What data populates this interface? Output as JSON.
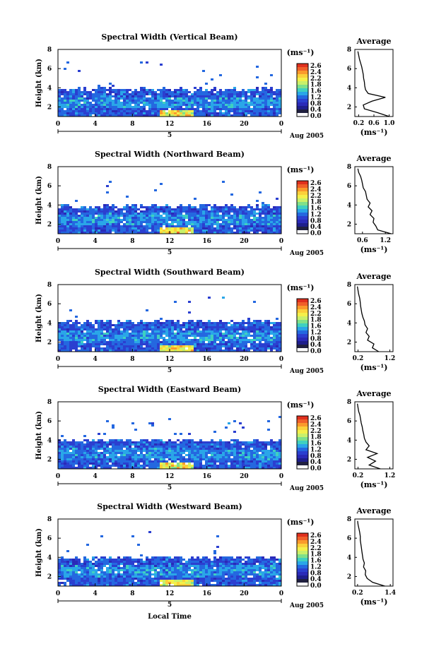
{
  "figure": {
    "date_label": "Aug 2005",
    "day_label": "5",
    "bottom_xlabel": "Local Time",
    "avg_title": "Average",
    "units_label": "(ms⁻¹)",
    "height_label": "Height (km)"
  },
  "colorbar": {
    "ticks": [
      "2.6",
      "2.4",
      "2.2",
      "1.8",
      "1.6",
      "1.2",
      "0.8",
      "0.4",
      "0.0"
    ],
    "colors": [
      "#e0301e",
      "#f0602a",
      "#fa9a2c",
      "#fbd03a",
      "#f4f04a",
      "#c9f06a",
      "#7fe08a",
      "#3fd0c0",
      "#2aa6e8",
      "#2468e0",
      "#2b3fd0",
      "#2a2ab8",
      "#1e1e8c",
      "#202040",
      "#ffffff"
    ]
  },
  "chart_data": [
    {
      "type": "heatmap",
      "title": "Spectral Width (Vertical Beam)",
      "xlabel": "",
      "ylabel": "Height (km)",
      "xlim": [
        0,
        24
      ],
      "ylim": [
        1,
        8
      ],
      "xticks": [
        "0",
        "4",
        "8",
        "12",
        "16",
        "20",
        "0"
      ],
      "yticks": [
        "2",
        "4",
        "6",
        "8"
      ],
      "top_km": 4.0,
      "profile": {
        "title": "Average",
        "xlabel": "(ms⁻¹)",
        "xticks": [
          "0.2",
          "0.6",
          "1.0"
        ],
        "xlim": [
          0.1,
          1.1
        ],
        "yticks": [
          "2",
          "4",
          "6",
          "8"
        ],
        "heights_km": [
          1.0,
          1.4,
          1.8,
          2.2,
          2.6,
          3.0,
          3.4,
          3.8,
          4.2,
          4.6,
          5.0,
          5.4,
          5.8,
          6.2,
          6.6,
          7.0,
          7.4,
          7.8
        ],
        "values": [
          1.0,
          0.7,
          0.35,
          0.32,
          0.55,
          0.9,
          0.45,
          0.38,
          0.36,
          0.35,
          0.33,
          0.32,
          0.3,
          0.28,
          0.25,
          0.22,
          0.2,
          0.18
        ]
      }
    },
    {
      "type": "heatmap",
      "title": "Spectral Width (Northward Beam)",
      "xlabel": "",
      "ylabel": "Height (km)",
      "xlim": [
        0,
        24
      ],
      "ylim": [
        1,
        8
      ],
      "xticks": [
        "0",
        "4",
        "8",
        "12",
        "16",
        "20",
        "0"
      ],
      "yticks": [
        "2",
        "4",
        "6",
        "8"
      ],
      "top_km": 4.0,
      "profile": {
        "title": "Average",
        "xlabel": "(ms⁻¹)",
        "xticks": [
          "0.6",
          "1.2"
        ],
        "xlim": [
          0.4,
          1.4
        ],
        "yticks": [
          "2",
          "4",
          "6",
          "8"
        ],
        "heights_km": [
          1.0,
          1.4,
          1.8,
          2.2,
          2.6,
          3.0,
          3.4,
          3.8,
          4.2,
          4.6,
          5.0,
          5.4,
          5.8,
          6.2,
          6.6,
          7.0,
          7.4,
          7.8
        ],
        "values": [
          1.35,
          1.0,
          0.95,
          0.88,
          0.9,
          0.8,
          0.85,
          0.75,
          0.8,
          0.72,
          0.7,
          0.68,
          0.62,
          0.6,
          0.58,
          0.55,
          0.5,
          0.48
        ]
      }
    },
    {
      "type": "heatmap",
      "title": "Spectral Width (Southward Beam)",
      "xlabel": "",
      "ylabel": "Height (km)",
      "xlim": [
        0,
        24
      ],
      "ylim": [
        1,
        8
      ],
      "xticks": [
        "0",
        "4",
        "8",
        "12",
        "16",
        "20",
        "0"
      ],
      "yticks": [
        "2",
        "4",
        "6",
        "8"
      ],
      "top_km": 4.3,
      "profile": {
        "title": "Average",
        "xlabel": "(ms⁻¹)",
        "xticks": [
          "0.2",
          "1.2"
        ],
        "xlim": [
          0.1,
          1.3
        ],
        "yticks": [
          "2",
          "4",
          "6",
          "8"
        ],
        "heights_km": [
          1.0,
          1.4,
          1.8,
          2.2,
          2.6,
          3.0,
          3.4,
          3.8,
          4.2,
          4.6,
          5.0,
          5.4,
          5.8,
          6.2,
          6.6,
          7.0,
          7.4,
          7.8
        ],
        "values": [
          0.85,
          0.65,
          0.7,
          0.5,
          0.55,
          0.45,
          0.5,
          0.42,
          0.4,
          0.35,
          0.32,
          0.3,
          0.28,
          0.27,
          0.25,
          0.22,
          0.2,
          0.18
        ]
      }
    },
    {
      "type": "heatmap",
      "title": "Spectral Width (Eastward Beam)",
      "xlabel": "",
      "ylabel": "Height (km)",
      "xlim": [
        0,
        24
      ],
      "ylim": [
        1,
        8
      ],
      "xticks": [
        "0",
        "4",
        "8",
        "12",
        "16",
        "20",
        "0"
      ],
      "yticks": [
        "2",
        "4",
        "6",
        "8"
      ],
      "top_km": 4.1,
      "profile": {
        "title": "Average",
        "xlabel": "(ms⁻¹)",
        "xticks": [
          "0.2",
          "1.2"
        ],
        "xlim": [
          0.1,
          1.3
        ],
        "yticks": [
          "2",
          "4",
          "6",
          "8"
        ],
        "heights_km": [
          1.0,
          1.4,
          1.8,
          2.2,
          2.6,
          3.0,
          3.4,
          3.8,
          4.2,
          4.6,
          5.0,
          5.4,
          5.8,
          6.2,
          6.6,
          7.0,
          7.4,
          7.8
        ],
        "values": [
          0.9,
          0.55,
          0.75,
          0.5,
          0.8,
          0.45,
          0.55,
          0.45,
          0.4,
          0.38,
          0.35,
          0.33,
          0.3,
          0.28,
          0.26,
          0.22,
          0.2,
          0.18
        ]
      }
    },
    {
      "type": "heatmap",
      "title": "Spectral Width (Westward Beam)",
      "xlabel": "Local Time",
      "ylabel": "Height (km)",
      "xlim": [
        0,
        24
      ],
      "ylim": [
        1,
        8
      ],
      "xticks": [
        "0",
        "4",
        "8",
        "12",
        "16",
        "20",
        "0"
      ],
      "yticks": [
        "2",
        "4",
        "6",
        "8"
      ],
      "top_km": 4.1,
      "profile": {
        "title": "Average",
        "xlabel": "(ms⁻¹)",
        "xticks": [
          "0.2",
          "1.4"
        ],
        "xlim": [
          0.1,
          1.5
        ],
        "yticks": [
          "2",
          "4",
          "6",
          "8"
        ],
        "heights_km": [
          1.0,
          1.4,
          1.8,
          2.2,
          2.6,
          3.0,
          3.4,
          3.8,
          4.2,
          4.6,
          5.0,
          5.4,
          5.8,
          6.2,
          6.6,
          7.0,
          7.4,
          7.8
        ],
        "values": [
          1.2,
          0.75,
          0.55,
          0.48,
          0.5,
          0.42,
          0.45,
          0.4,
          0.38,
          0.36,
          0.34,
          0.32,
          0.3,
          0.3,
          0.28,
          0.25,
          0.22,
          0.2
        ]
      }
    }
  ]
}
